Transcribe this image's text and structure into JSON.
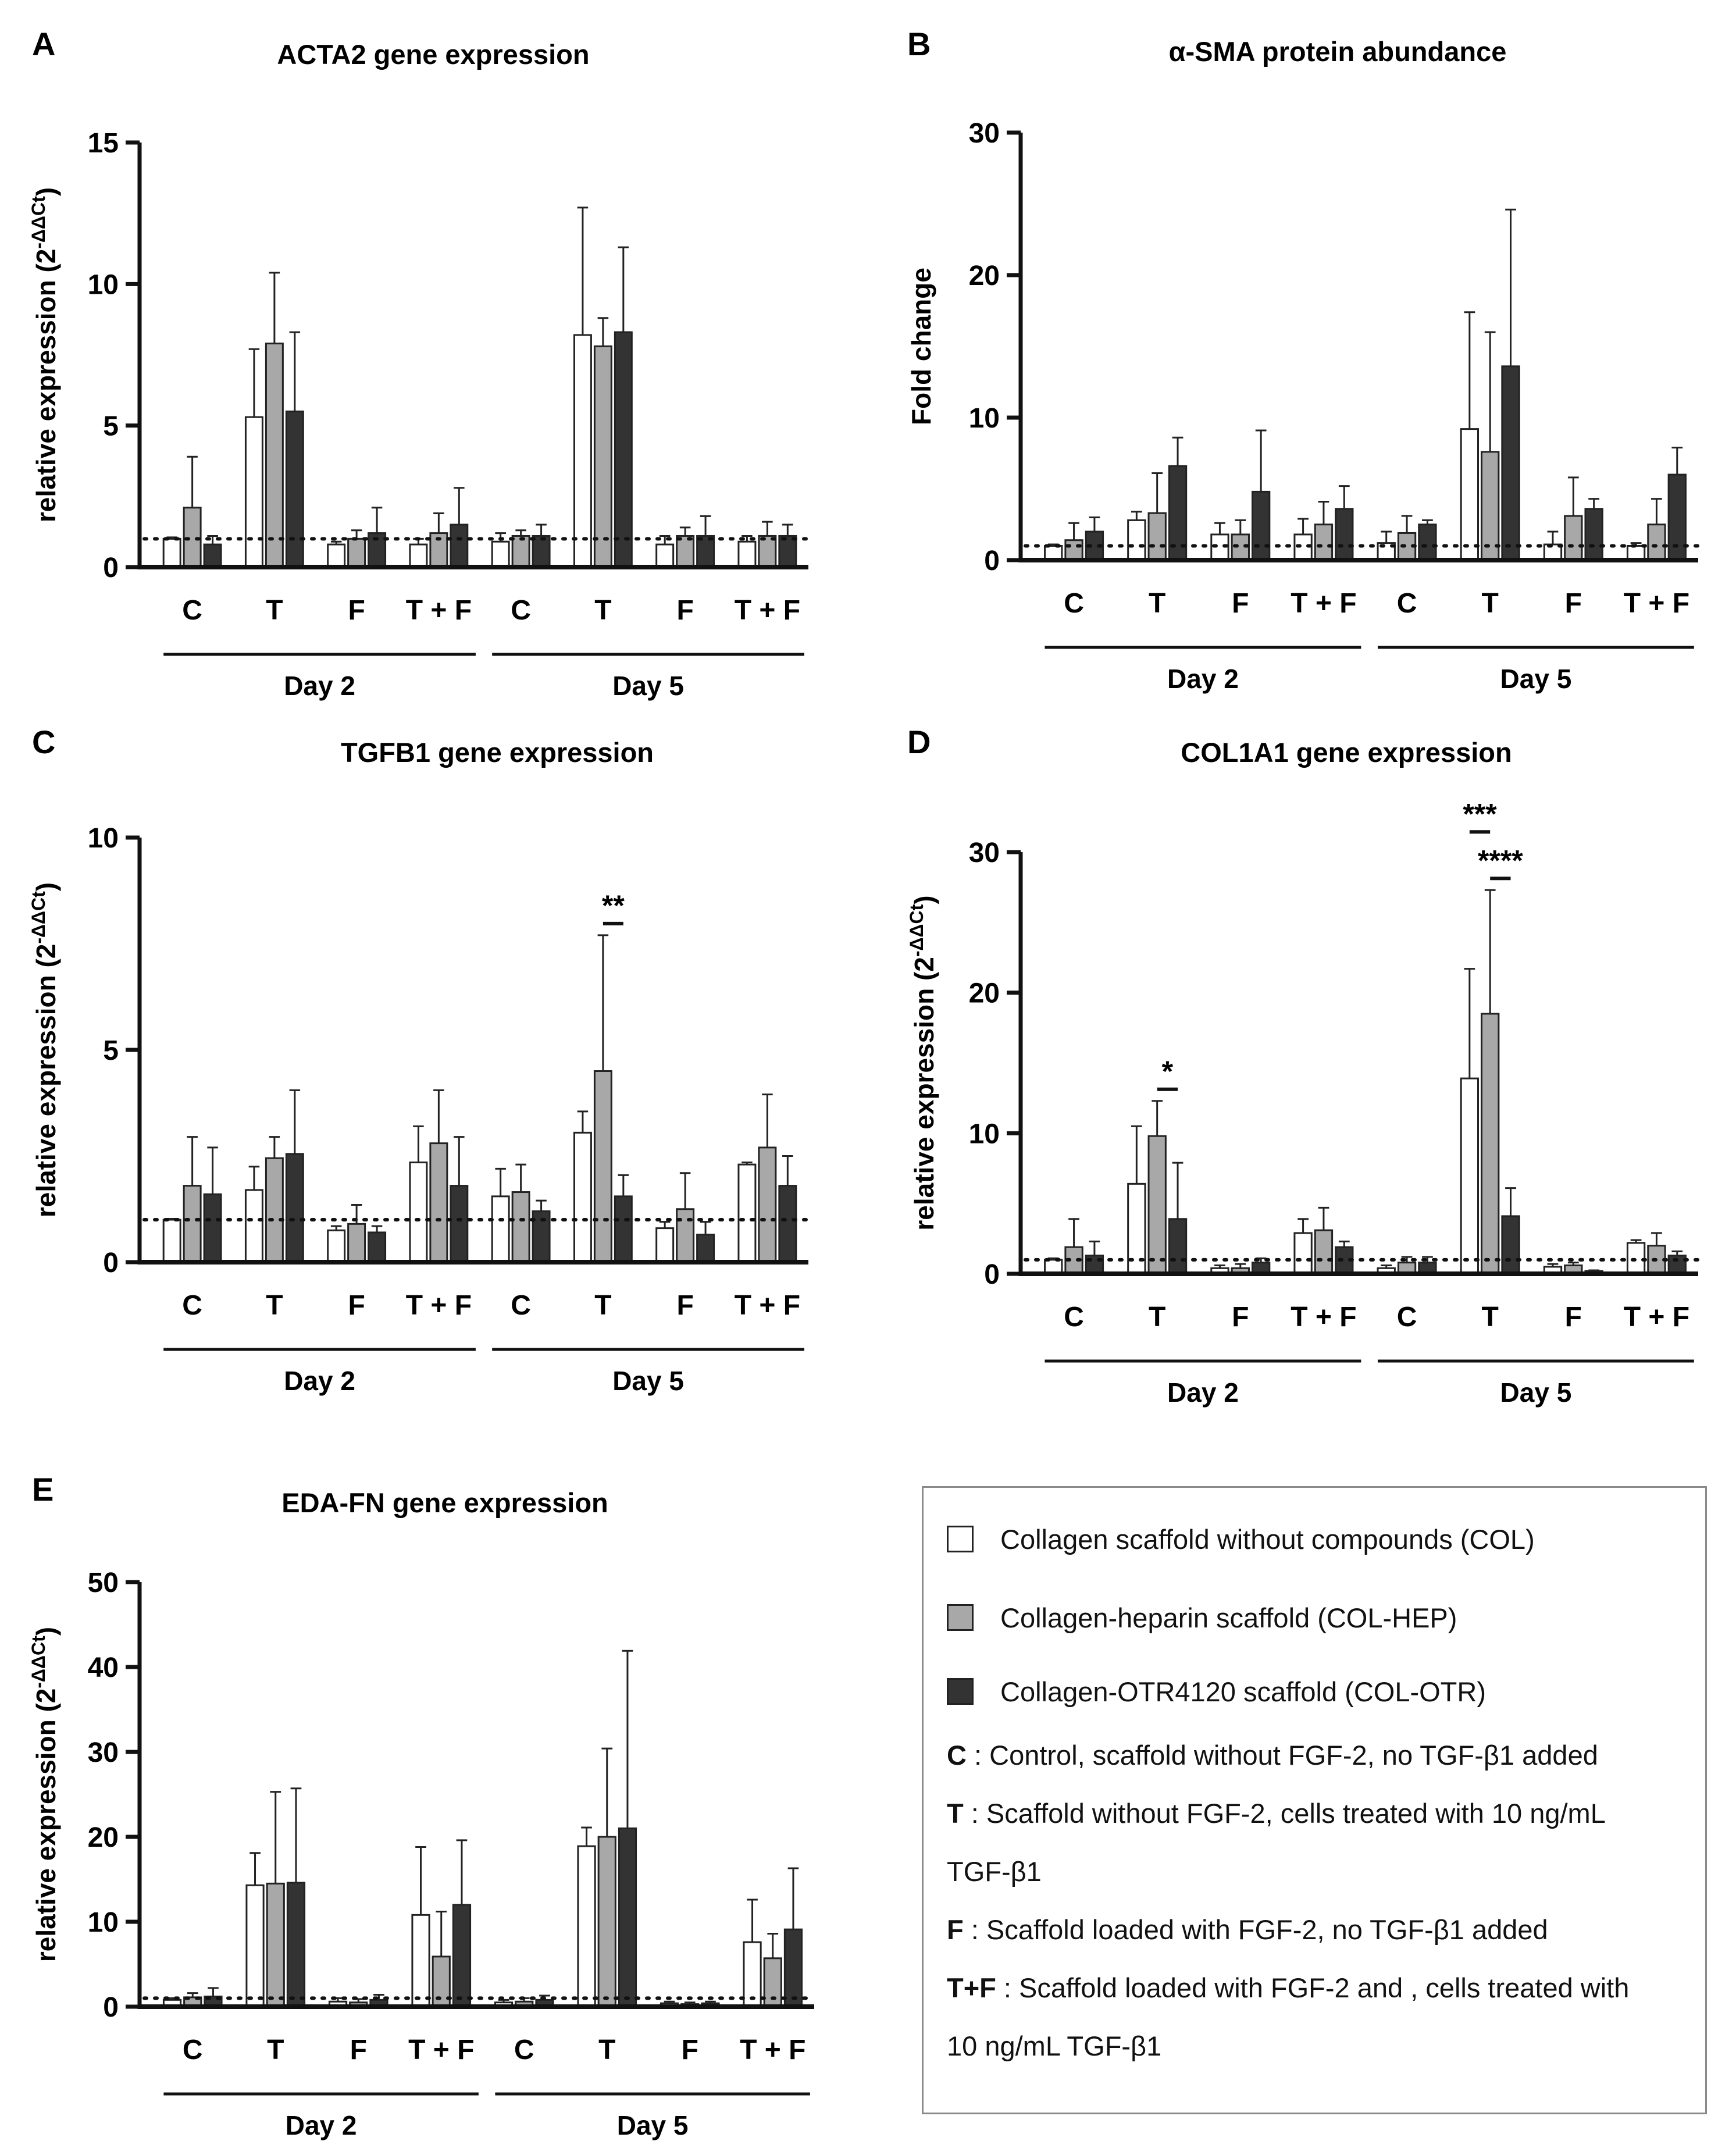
{
  "colors": {
    "COL": "#ffffff",
    "HEP": "#a8a8a8",
    "OTR": "#333333",
    "axis": "#111111"
  },
  "chart_data": [
    {
      "id": "A",
      "type": "bar",
      "panel_label": "A",
      "title": "ACTA2 gene expression",
      "ylabel_main": "relative expression  (2",
      "ylabel_sup": "-ΔΔCt",
      "ylabel_end": ")",
      "ylim": [
        0,
        15
      ],
      "yticks": [
        "0",
        "5",
        "10",
        "15"
      ],
      "categories": [
        "C",
        "T",
        "F",
        "T + F",
        "C",
        "T",
        "F",
        "T + F"
      ],
      "groups": [
        "Day 2",
        "Day 5"
      ],
      "baseline": 1,
      "series": [
        {
          "name": "COL",
          "values": [
            1.0,
            5.3,
            0.8,
            0.8,
            0.9,
            8.2,
            0.8,
            0.9
          ],
          "errors": [
            0.05,
            2.4,
            0.1,
            0.2,
            0.3,
            4.5,
            0.3,
            0.2
          ]
        },
        {
          "name": "COL-HEP",
          "values": [
            2.1,
            7.9,
            1.0,
            1.2,
            1.1,
            7.8,
            1.1,
            1.1
          ],
          "errors": [
            1.8,
            2.5,
            0.3,
            0.7,
            0.2,
            1.0,
            0.3,
            0.5
          ]
        },
        {
          "name": "COL-OTR",
          "values": [
            0.8,
            5.5,
            1.2,
            1.5,
            1.1,
            8.3,
            1.1,
            1.1
          ],
          "errors": [
            0.3,
            2.8,
            0.9,
            1.3,
            0.4,
            3.0,
            0.7,
            0.4
          ]
        }
      ],
      "significance": []
    },
    {
      "id": "B",
      "type": "bar",
      "panel_label": "B",
      "title": "α-SMA protein abundance",
      "ylabel_main": "Fold change",
      "ylabel_sup": "",
      "ylabel_end": "",
      "ylim": [
        0,
        30
      ],
      "yticks": [
        "0",
        "10",
        "20",
        "30"
      ],
      "categories": [
        "C",
        "T",
        "F",
        "T + F",
        "C",
        "T",
        "F",
        "T + F"
      ],
      "groups": [
        "Day 2",
        "Day 5"
      ],
      "baseline": 1,
      "series": [
        {
          "name": "COL",
          "values": [
            1.0,
            2.8,
            1.8,
            1.8,
            1.2,
            9.2,
            1.1,
            1.0
          ],
          "errors": [
            0.1,
            0.6,
            0.8,
            1.1,
            0.8,
            8.2,
            0.9,
            0.2
          ]
        },
        {
          "name": "COL-HEP",
          "values": [
            1.4,
            3.3,
            1.8,
            2.5,
            1.9,
            7.6,
            3.1,
            2.5
          ],
          "errors": [
            1.2,
            2.8,
            1.0,
            1.6,
            1.2,
            8.4,
            2.7,
            1.8
          ]
        },
        {
          "name": "COL-OTR",
          "values": [
            2.0,
            6.6,
            4.8,
            3.6,
            2.5,
            13.6,
            3.6,
            6.0
          ],
          "errors": [
            1.0,
            2.0,
            4.3,
            1.6,
            0.3,
            11.0,
            0.7,
            1.9
          ]
        }
      ],
      "significance": []
    },
    {
      "id": "C",
      "type": "bar",
      "panel_label": "C",
      "title": "TGFB1 gene expression",
      "ylabel_main": "relative expression (2",
      "ylabel_sup": "-ΔΔCt",
      "ylabel_end": ")",
      "ylim": [
        0,
        10
      ],
      "yticks": [
        "0",
        "5",
        "10"
      ],
      "categories": [
        "C",
        "T",
        "F",
        "T + F",
        "C",
        "T",
        "F",
        "T + F"
      ],
      "groups": [
        "Day 2",
        "Day 5"
      ],
      "baseline": 1,
      "series": [
        {
          "name": "COL",
          "values": [
            1.0,
            1.7,
            0.75,
            2.35,
            1.55,
            3.05,
            0.8,
            2.3
          ],
          "errors": [
            0.02,
            0.55,
            0.1,
            0.85,
            0.65,
            0.5,
            0.15,
            0.05
          ]
        },
        {
          "name": "COL-HEP",
          "values": [
            1.8,
            2.45,
            0.9,
            2.8,
            1.65,
            4.5,
            1.25,
            2.7
          ],
          "errors": [
            1.15,
            0.5,
            0.45,
            1.25,
            0.65,
            3.2,
            0.85,
            1.25
          ]
        },
        {
          "name": "COL-OTR",
          "values": [
            1.6,
            2.55,
            0.7,
            1.8,
            1.2,
            1.55,
            0.65,
            1.8
          ],
          "errors": [
            1.1,
            1.5,
            0.15,
            1.15,
            0.25,
            0.5,
            0.3,
            0.7
          ]
        }
      ],
      "significance": [
        {
          "label": "**",
          "cat": 5,
          "from": 1,
          "to": 2,
          "level": 0
        }
      ]
    },
    {
      "id": "D",
      "type": "bar",
      "panel_label": "D",
      "title": "COL1A1 gene expression",
      "ylabel_main": "relative expression  (2",
      "ylabel_sup": "-ΔΔCt",
      "ylabel_end": ")",
      "ylim": [
        0,
        30
      ],
      "yticks": [
        "0",
        "10",
        "20",
        "30"
      ],
      "categories": [
        "C",
        "T",
        "F",
        "T + F",
        "C",
        "T",
        "F",
        "T + F"
      ],
      "groups": [
        "Day 2",
        "Day 5"
      ],
      "baseline": 1,
      "series": [
        {
          "name": "COL",
          "values": [
            1.0,
            6.4,
            0.4,
            2.9,
            0.4,
            13.9,
            0.5,
            2.2
          ],
          "errors": [
            0.1,
            4.1,
            0.2,
            1.0,
            0.2,
            7.8,
            0.2,
            0.2
          ]
        },
        {
          "name": "COL-HEP",
          "values": [
            1.9,
            9.8,
            0.4,
            3.1,
            0.8,
            18.5,
            0.6,
            2.0
          ],
          "errors": [
            2.0,
            2.5,
            0.3,
            1.6,
            0.4,
            8.8,
            0.2,
            0.9
          ]
        },
        {
          "name": "COL-OTR",
          "values": [
            1.3,
            3.9,
            0.8,
            1.9,
            0.8,
            4.1,
            0.2,
            1.3
          ],
          "errors": [
            1.0,
            4.0,
            0.3,
            0.4,
            0.4,
            2.0,
            0.05,
            0.3
          ]
        }
      ],
      "significance": [
        {
          "label": "*",
          "cat": 1,
          "from": 1,
          "to": 2,
          "level": 0
        },
        {
          "label": "***",
          "cat": 5,
          "from": 0,
          "to": 1,
          "level": 1
        },
        {
          "label": "****",
          "cat": 5,
          "from": 1,
          "to": 2,
          "level": 0
        }
      ]
    },
    {
      "id": "E",
      "type": "bar",
      "panel_label": "E",
      "title": "EDA-FN gene expression",
      "ylabel_main": "relative expression (2",
      "ylabel_sup": "-ΔΔCt",
      "ylabel_end": ")",
      "ylim": [
        0,
        50
      ],
      "yticks": [
        "0",
        "10",
        "20",
        "30",
        "40",
        "50"
      ],
      "categories": [
        "C",
        "T",
        "F",
        "T + F",
        "C",
        "T",
        "F",
        "T + F"
      ],
      "groups": [
        "Day 2",
        "Day 5"
      ],
      "baseline": 1,
      "series": [
        {
          "name": "COL",
          "values": [
            0.8,
            14.3,
            0.6,
            10.8,
            0.5,
            18.9,
            0.4,
            7.6
          ],
          "errors": [
            0.2,
            3.8,
            0.4,
            8.0,
            0.3,
            2.2,
            0.2,
            5.0
          ]
        },
        {
          "name": "COL-HEP",
          "values": [
            1.1,
            14.5,
            0.5,
            5.9,
            0.6,
            20.0,
            0.3,
            5.7
          ],
          "errors": [
            0.5,
            10.8,
            0.4,
            5.3,
            0.4,
            10.4,
            0.2,
            2.9
          ]
        },
        {
          "name": "COL-OTR",
          "values": [
            1.2,
            14.6,
            0.8,
            12.0,
            0.8,
            21.0,
            0.4,
            9.1
          ],
          "errors": [
            1.0,
            11.1,
            0.6,
            7.6,
            0.5,
            20.9,
            0.2,
            7.2
          ]
        }
      ],
      "significance": []
    }
  ],
  "legend": {
    "items": [
      {
        "label": "Collagen scaffold without compounds (COL)",
        "color": "#ffffff"
      },
      {
        "label": "Collagen-heparin scaffold (COL-HEP)",
        "color": "#a8a8a8"
      },
      {
        "label": "Collagen-OTR4120 scaffold (COL-OTR)",
        "color": "#333333"
      }
    ],
    "definitions": [
      {
        "key": "C",
        "text": " : Control, scaffold without FGF-2, no TGF-β1 added"
      },
      {
        "key": "T",
        "text": " : Scaffold without FGF-2, cells treated with 10 ng/mL"
      },
      {
        "key": "",
        "text": "TGF-β1"
      },
      {
        "key": "F",
        "text": " : Scaffold loaded with FGF-2, no TGF-β1 added"
      },
      {
        "key": "T+F",
        "text": " : Scaffold loaded with FGF-2 and , cells treated with"
      },
      {
        "key": "",
        "text": "10 ng/mL TGF-β1"
      }
    ]
  }
}
